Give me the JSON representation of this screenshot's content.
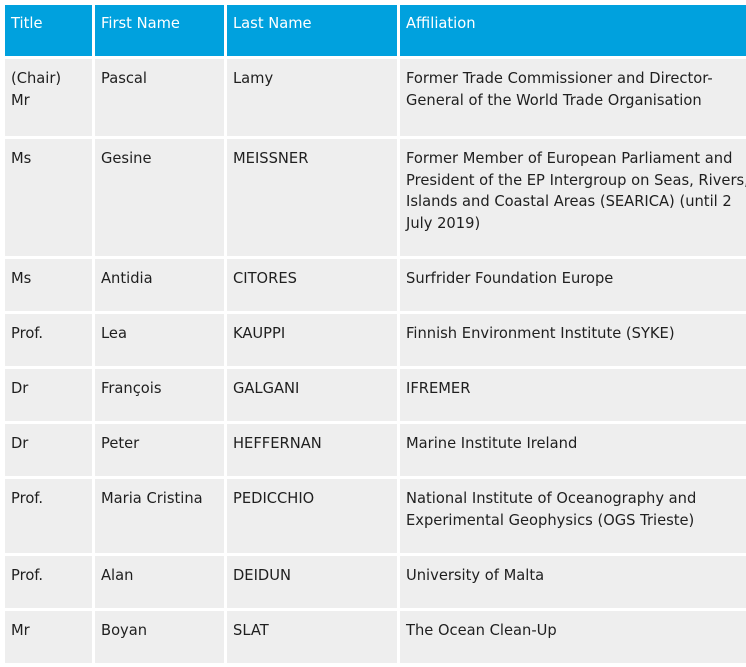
{
  "table": {
    "headers": [
      "Title",
      "First Name",
      "Last Name",
      "Affiliation"
    ],
    "rows": [
      {
        "title": "(Chair) Mr",
        "first": "Pascal",
        "last": "Lamy",
        "affiliation": "Former Trade Commissioner and Director-General of the World Trade Organisation"
      },
      {
        "title": "Ms",
        "first": "Gesine",
        "last": "MEISSNER",
        "affiliation": "Former Member of European Parliament and President of the EP Intergroup on Seas, Rivers, Islands and Coastal Areas (SEARICA) (until 2 July 2019)"
      },
      {
        "title": "Ms",
        "first": "Antidia",
        "last": "CITORES",
        "affiliation": "Surfrider Foundation Europe"
      },
      {
        "title": "Prof.",
        "first": "Lea",
        "last": "KAUPPI",
        "affiliation": "Finnish Environment Institute (SYKE)"
      },
      {
        "title": "Dr",
        "first": "François",
        "last": "GALGANI",
        "affiliation": "IFREMER"
      },
      {
        "title": "Dr",
        "first": "Peter",
        "last": "HEFFERNAN",
        "affiliation": "Marine Institute Ireland"
      },
      {
        "title": "Prof.",
        "first": "Maria Cristina",
        "last": "PEDICCHIO",
        "affiliation": "National Institute of Oceanography and Experimental Geophysics (OGS Trieste)"
      },
      {
        "title": "Prof.",
        "first": "Alan",
        "last": "DEIDUN",
        "affiliation": "University of Malta"
      },
      {
        "title": "Mr",
        "first": "Boyan",
        "last": "SLAT",
        "affiliation": "The Ocean Clean-Up"
      }
    ]
  },
  "colors": {
    "header_bg": "#00a1de",
    "header_text": "#ffffff",
    "cell_bg": "#eeeeee",
    "text": "#1f1f1f"
  }
}
